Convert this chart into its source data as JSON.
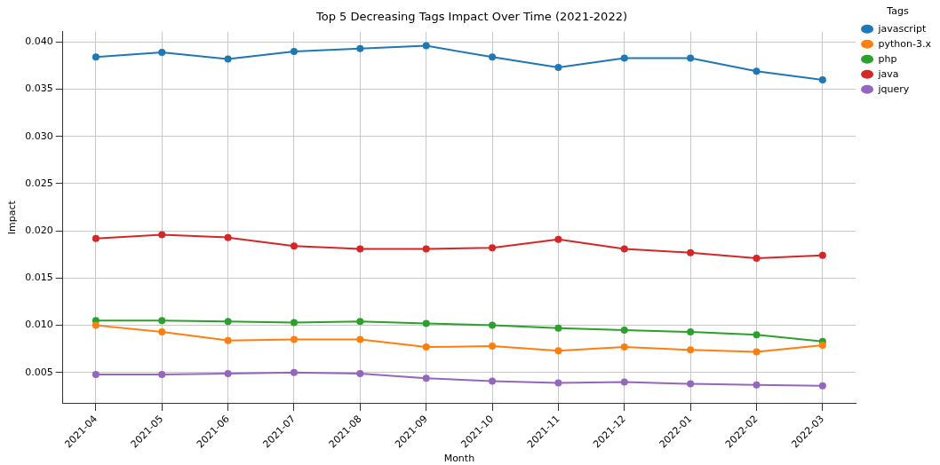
{
  "chart_data": {
    "type": "line",
    "title": "Top 5 Decreasing Tags Impact Over Time (2021-2022)",
    "xlabel": "Month",
    "ylabel": "Impact",
    "legend_title": "Tags",
    "categories": [
      "2021-04",
      "2021-05",
      "2021-06",
      "2021-07",
      "2021-08",
      "2021-09",
      "2021-10",
      "2021-11",
      "2021-12",
      "2022-01",
      "2022-02",
      "2022-03"
    ],
    "series": [
      {
        "name": "javascript",
        "color": "#1f77b4",
        "values": [
          0.0384,
          0.0389,
          0.0382,
          0.039,
          0.0393,
          0.0396,
          0.0384,
          0.0373,
          0.0383,
          0.0383,
          0.0369,
          0.036
        ]
      },
      {
        "name": "python-3.x",
        "color": "#ff7f0e",
        "values": [
          0.01,
          0.0093,
          0.0084,
          0.0085,
          0.0085,
          0.0077,
          0.0078,
          0.0073,
          0.0077,
          0.0074,
          0.0072,
          0.0079
        ]
      },
      {
        "name": "php",
        "color": "#2ca02c",
        "values": [
          0.0105,
          0.0105,
          0.0104,
          0.0103,
          0.0104,
          0.0102,
          0.01,
          0.0097,
          0.0095,
          0.0093,
          0.009,
          0.0083
        ]
      },
      {
        "name": "java",
        "color": "#d62728",
        "values": [
          0.0192,
          0.0196,
          0.0193,
          0.0184,
          0.0181,
          0.0181,
          0.0182,
          0.0191,
          0.0181,
          0.0177,
          0.0171,
          0.0174
        ]
      },
      {
        "name": "jquery",
        "color": "#9467bd",
        "values": [
          0.0048,
          0.0048,
          0.0049,
          0.005,
          0.0049,
          0.0044,
          0.0041,
          0.0039,
          0.004,
          0.0038,
          0.0037,
          0.0036
        ]
      }
    ],
    "ylim": [
      0.0017,
      0.0411
    ],
    "yticks": [
      {
        "value": 0.005,
        "label": "0.005"
      },
      {
        "value": 0.01,
        "label": "0.010"
      },
      {
        "value": 0.015,
        "label": "0.015"
      },
      {
        "value": 0.02,
        "label": "0.020"
      },
      {
        "value": 0.025,
        "label": "0.025"
      },
      {
        "value": 0.03,
        "label": "0.030"
      },
      {
        "value": 0.035,
        "label": "0.035"
      },
      {
        "value": 0.04,
        "label": "0.040"
      }
    ],
    "grid": true,
    "legend": "top right",
    "marker": "circle",
    "line_style": "solid"
  }
}
